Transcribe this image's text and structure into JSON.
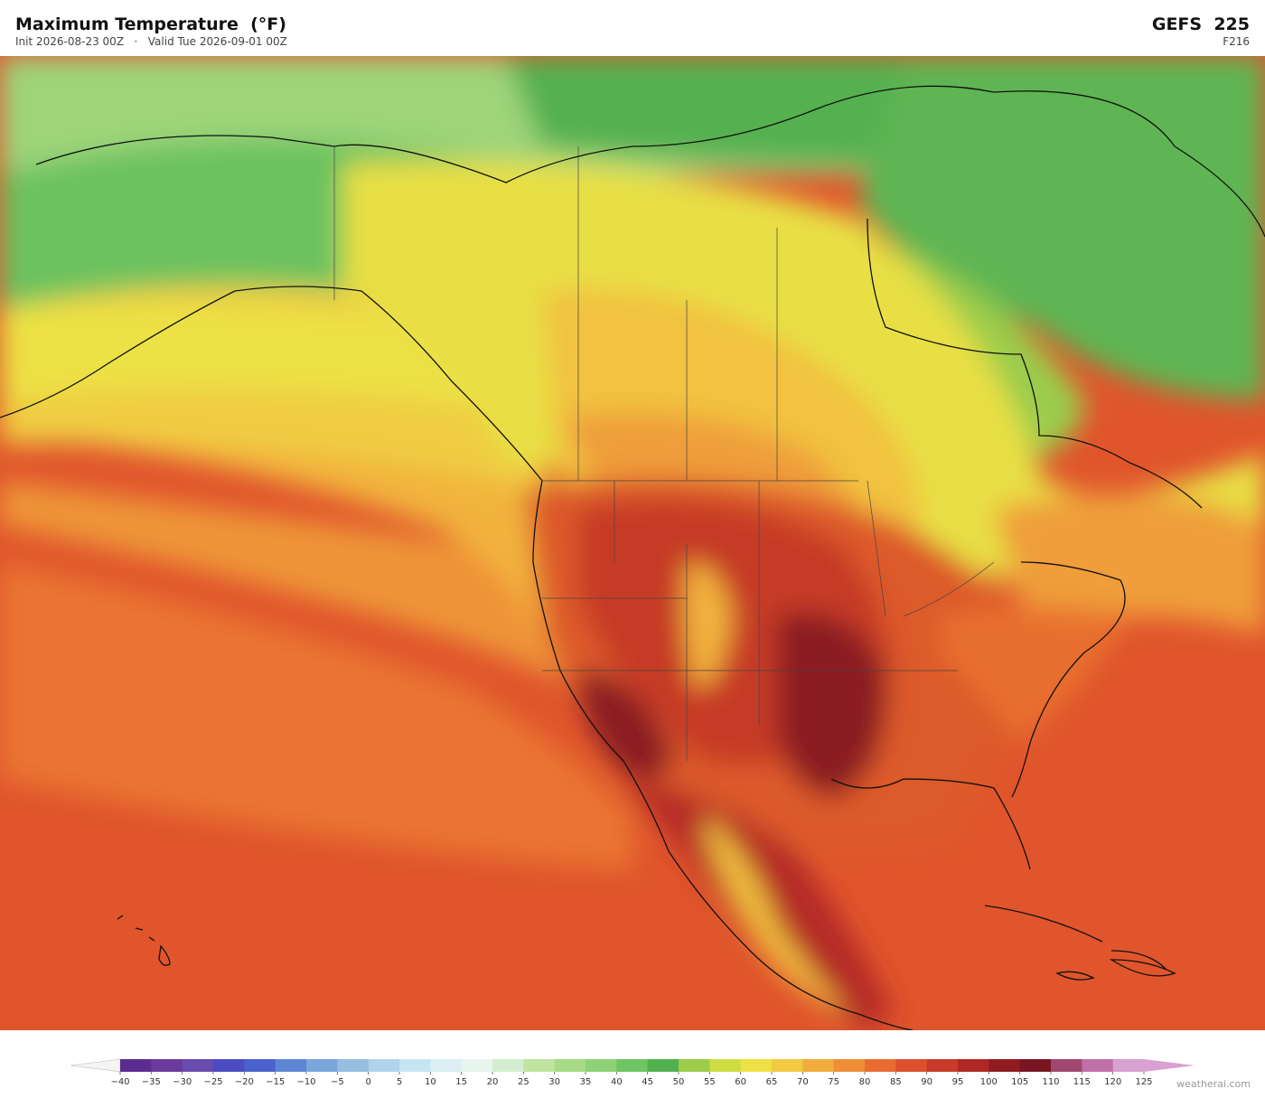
{
  "header": {
    "title": "Maximum Temperature  (°F)",
    "init": "Init 2026-08-23 00Z",
    "separator": "·",
    "valid": "Valid Tue 2026-09-01 00Z",
    "model": "GEFS  225",
    "forecast_hour": "F216"
  },
  "colorbar": {
    "ticks": [
      {
        "value": -40,
        "label": "−40"
      },
      {
        "value": -35,
        "label": "−35"
      },
      {
        "value": -30,
        "label": "−30"
      },
      {
        "value": -25,
        "label": "−25"
      },
      {
        "value": -20,
        "label": "−20"
      },
      {
        "value": -15,
        "label": "−15"
      },
      {
        "value": -10,
        "label": "−10"
      },
      {
        "value": -5,
        "label": "−5"
      },
      0,
      5,
      10,
      15,
      20,
      25,
      30,
      35,
      40,
      45,
      50,
      55,
      60,
      65,
      70,
      75,
      80,
      85,
      90,
      95,
      100,
      105,
      110,
      115,
      120,
      125
    ],
    "colors": [
      "#5b2c8f",
      "#6b3a9d",
      "#6a4bb0",
      "#4b4cc0",
      "#4b61cb",
      "#5c86d3",
      "#79a6db",
      "#96bee1",
      "#afd4eb",
      "#c6e4f1",
      "#dbeff4",
      "#e7f5ee",
      "#d3edd0",
      "#bee4a0",
      "#a7da85",
      "#8fd176",
      "#6fc463",
      "#53b04f",
      "#9dcd4b",
      "#cedc42",
      "#ede143",
      "#f2c941",
      "#f0ad3d",
      "#ee8e37",
      "#e86c31",
      "#dc502d",
      "#c83a29",
      "#b02825",
      "#901c21",
      "#7a1621",
      "#a04870",
      "#c070a8",
      "#d8a1d1"
    ],
    "under_color": "#f4f4f4",
    "over_color": "#d8a1d1"
  },
  "footer": {
    "credit": "weatherai.com"
  }
}
